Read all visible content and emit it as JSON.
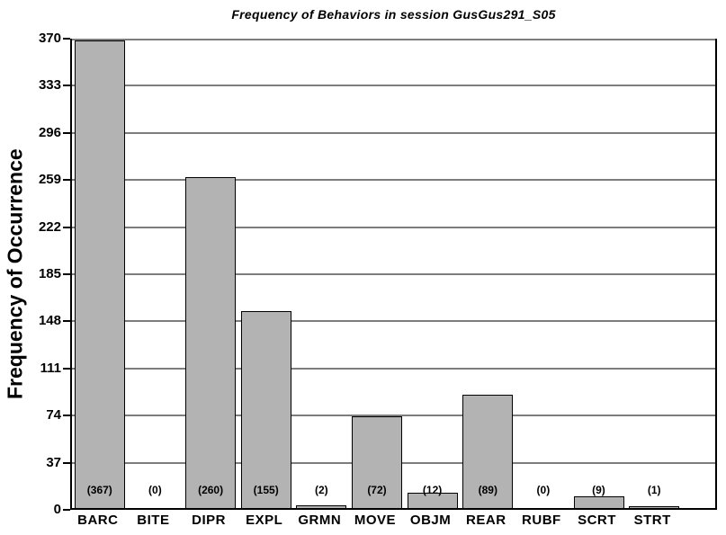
{
  "chart_data": {
    "type": "bar",
    "title": "Frequency of Behaviors in session GusGus291_S05",
    "xlabel": "",
    "ylabel": "Frequency of Occurrence",
    "categories": [
      "BARC",
      "BITE",
      "DIPR",
      "EXPL",
      "GRMN",
      "MOVE",
      "OBJM",
      "REAR",
      "RUBF",
      "SCRT",
      "STRT"
    ],
    "values": [
      367,
      0,
      260,
      155,
      2,
      72,
      12,
      89,
      0,
      9,
      1
    ],
    "value_labels": [
      "(367)",
      "(0)",
      "(260)",
      "(155)",
      "(2)",
      "(72)",
      "(12)",
      "(89)",
      "(0)",
      "(9)",
      "(1)"
    ],
    "yticks": [
      0,
      37,
      74,
      111,
      148,
      185,
      222,
      259,
      296,
      333,
      370
    ],
    "ylim": [
      0,
      370
    ],
    "grid": "horizontal",
    "legend": "none",
    "colors": {
      "bar_fill": "#b3b3b3",
      "bar_border": "#000000",
      "gridline": "#7d7d7d",
      "axis": "#000000",
      "background": "#ffffff",
      "text": "#000000"
    }
  }
}
